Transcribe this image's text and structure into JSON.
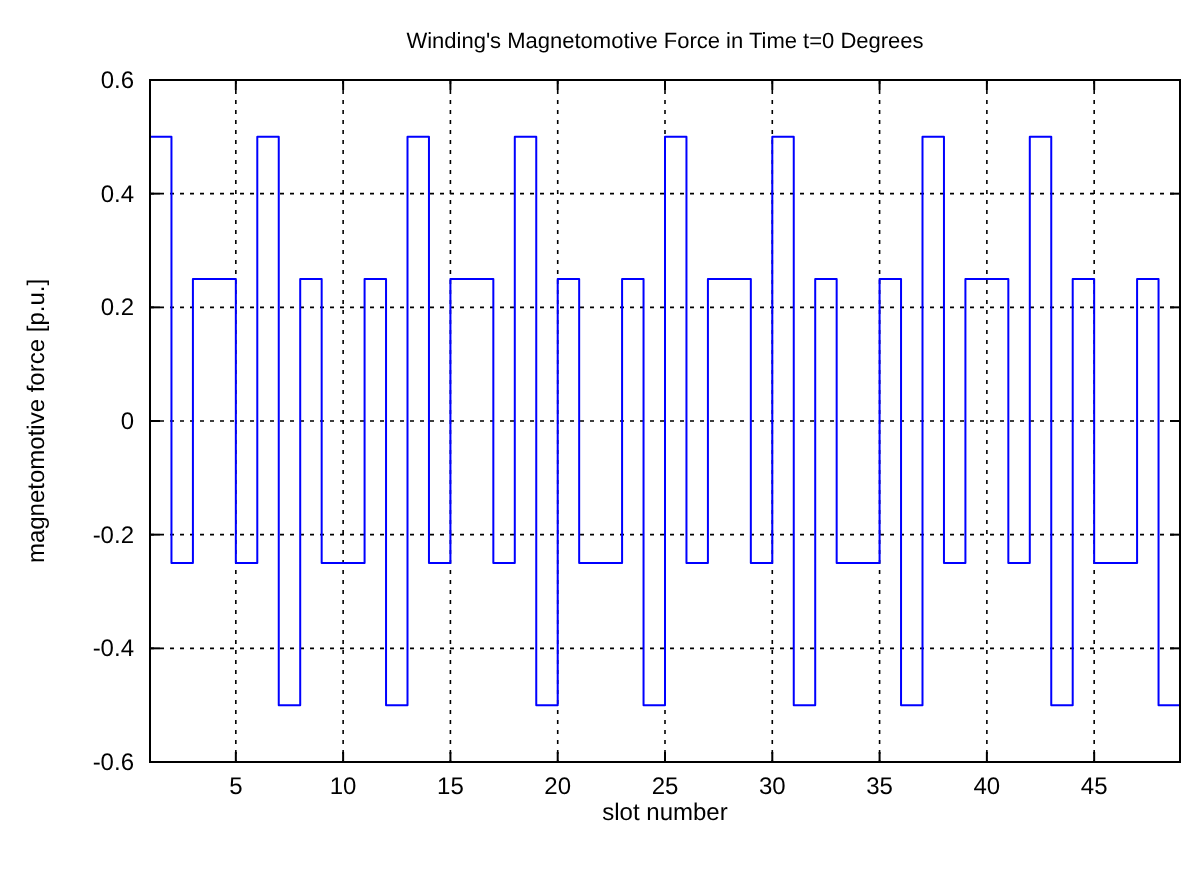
{
  "chart_data": {
    "type": "step",
    "title": "Winding's Magnetomotive Force in Time t=0 Degrees",
    "xlabel": "slot number",
    "ylabel": "magnetomotive force [p.u.]",
    "x": [
      1,
      2,
      3,
      4,
      5,
      6,
      7,
      8,
      9,
      10,
      11,
      12,
      13,
      14,
      15,
      16,
      17,
      18,
      19,
      20,
      21,
      22,
      23,
      24,
      25,
      26,
      27,
      28,
      29,
      30,
      31,
      32,
      33,
      34,
      35,
      36,
      37,
      38,
      39,
      40,
      41,
      42,
      43,
      44,
      45,
      46,
      47,
      48,
      49
    ],
    "series": [
      {
        "color": "#0000ff",
        "values": [
          0.5,
          -0.25,
          0.25,
          0.25,
          -0.25,
          0.5,
          -0.5,
          0.25,
          -0.25,
          -0.25,
          0.25,
          -0.5,
          0.5,
          -0.25,
          0.25,
          0.25,
          -0.25,
          0.5,
          -0.5,
          0.25,
          -0.25,
          -0.25,
          0.25,
          -0.5,
          0.5,
          -0.25,
          0.25,
          0.25,
          -0.25,
          0.5,
          -0.5,
          0.25,
          -0.25,
          -0.25,
          0.25,
          -0.5,
          0.5,
          -0.25,
          0.25,
          0.25,
          -0.25,
          0.5,
          -0.5,
          0.25,
          -0.25,
          -0.25,
          0.25,
          -0.5,
          -0.5
        ]
      }
    ],
    "xlim": [
      1,
      49
    ],
    "xticks": [
      5,
      10,
      15,
      20,
      25,
      30,
      35,
      40,
      45
    ],
    "ylim": [
      -0.6,
      0.6
    ],
    "yticks": [
      -0.6,
      -0.4,
      -0.2,
      0,
      0.2,
      0.4,
      0.6
    ],
    "grid": true,
    "marker": "none",
    "line_style": "solid"
  }
}
